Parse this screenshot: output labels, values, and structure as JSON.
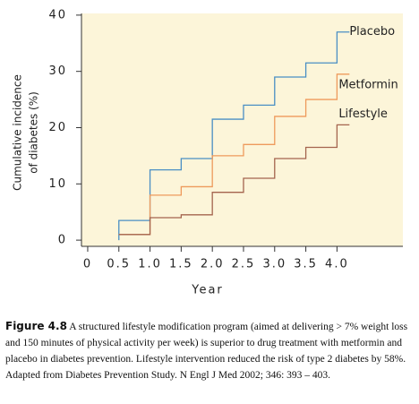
{
  "chart_data": {
    "type": "step",
    "ylabel": [
      "Cumulative incidence",
      "of diabetes (%)"
    ],
    "xlabel": "Year",
    "x": [
      0.5,
      0.5,
      1.0,
      1.5,
      2.0,
      2.5,
      3.0,
      3.5,
      4.0,
      4.2
    ],
    "series": [
      {
        "name": "Placebo",
        "color": "#4a8fc4",
        "values": [
          0,
          3.5,
          12.5,
          14.5,
          21.5,
          24,
          29,
          31.5,
          37,
          37
        ]
      },
      {
        "name": "Metformin",
        "color": "#ee9a5c",
        "values": [
          1,
          1,
          8,
          9.5,
          15,
          17,
          22,
          25,
          29.5,
          29.5
        ]
      },
      {
        "name": "Lifestyle",
        "color": "#a4644e",
        "values": [
          1,
          1,
          4,
          4.5,
          8.5,
          11,
          14.5,
          16.5,
          20.5,
          20.5
        ]
      }
    ],
    "xlim": [
      -0.1,
      5.0
    ],
    "ylim": [
      -1.1,
      40.3
    ],
    "xticks": [
      0,
      0.5,
      {
        "value": 1,
        "label": "1.0"
      },
      1.5,
      {
        "value": 2,
        "label": "2.0"
      },
      2.5,
      {
        "value": 3,
        "label": "3.0"
      },
      3.5,
      {
        "value": 4,
        "label": "4.0"
      }
    ],
    "yticks": [
      0,
      10,
      20,
      30,
      40
    ],
    "background": "#fcf5d9"
  },
  "caption": {
    "label": "Figure 4.8",
    "text": "A structured lifestyle modification program (aimed at delivering > 7% weight loss and 150 minutes of physical activity per week) is superior to drug treatment with metformin and placebo in diabetes prevention. Lifestyle intervention reduced the risk of type 2 diabetes by 58%. Adapted from Diabetes Prevention Study. N Engl J Med 2002; 346: 393 – 403."
  }
}
